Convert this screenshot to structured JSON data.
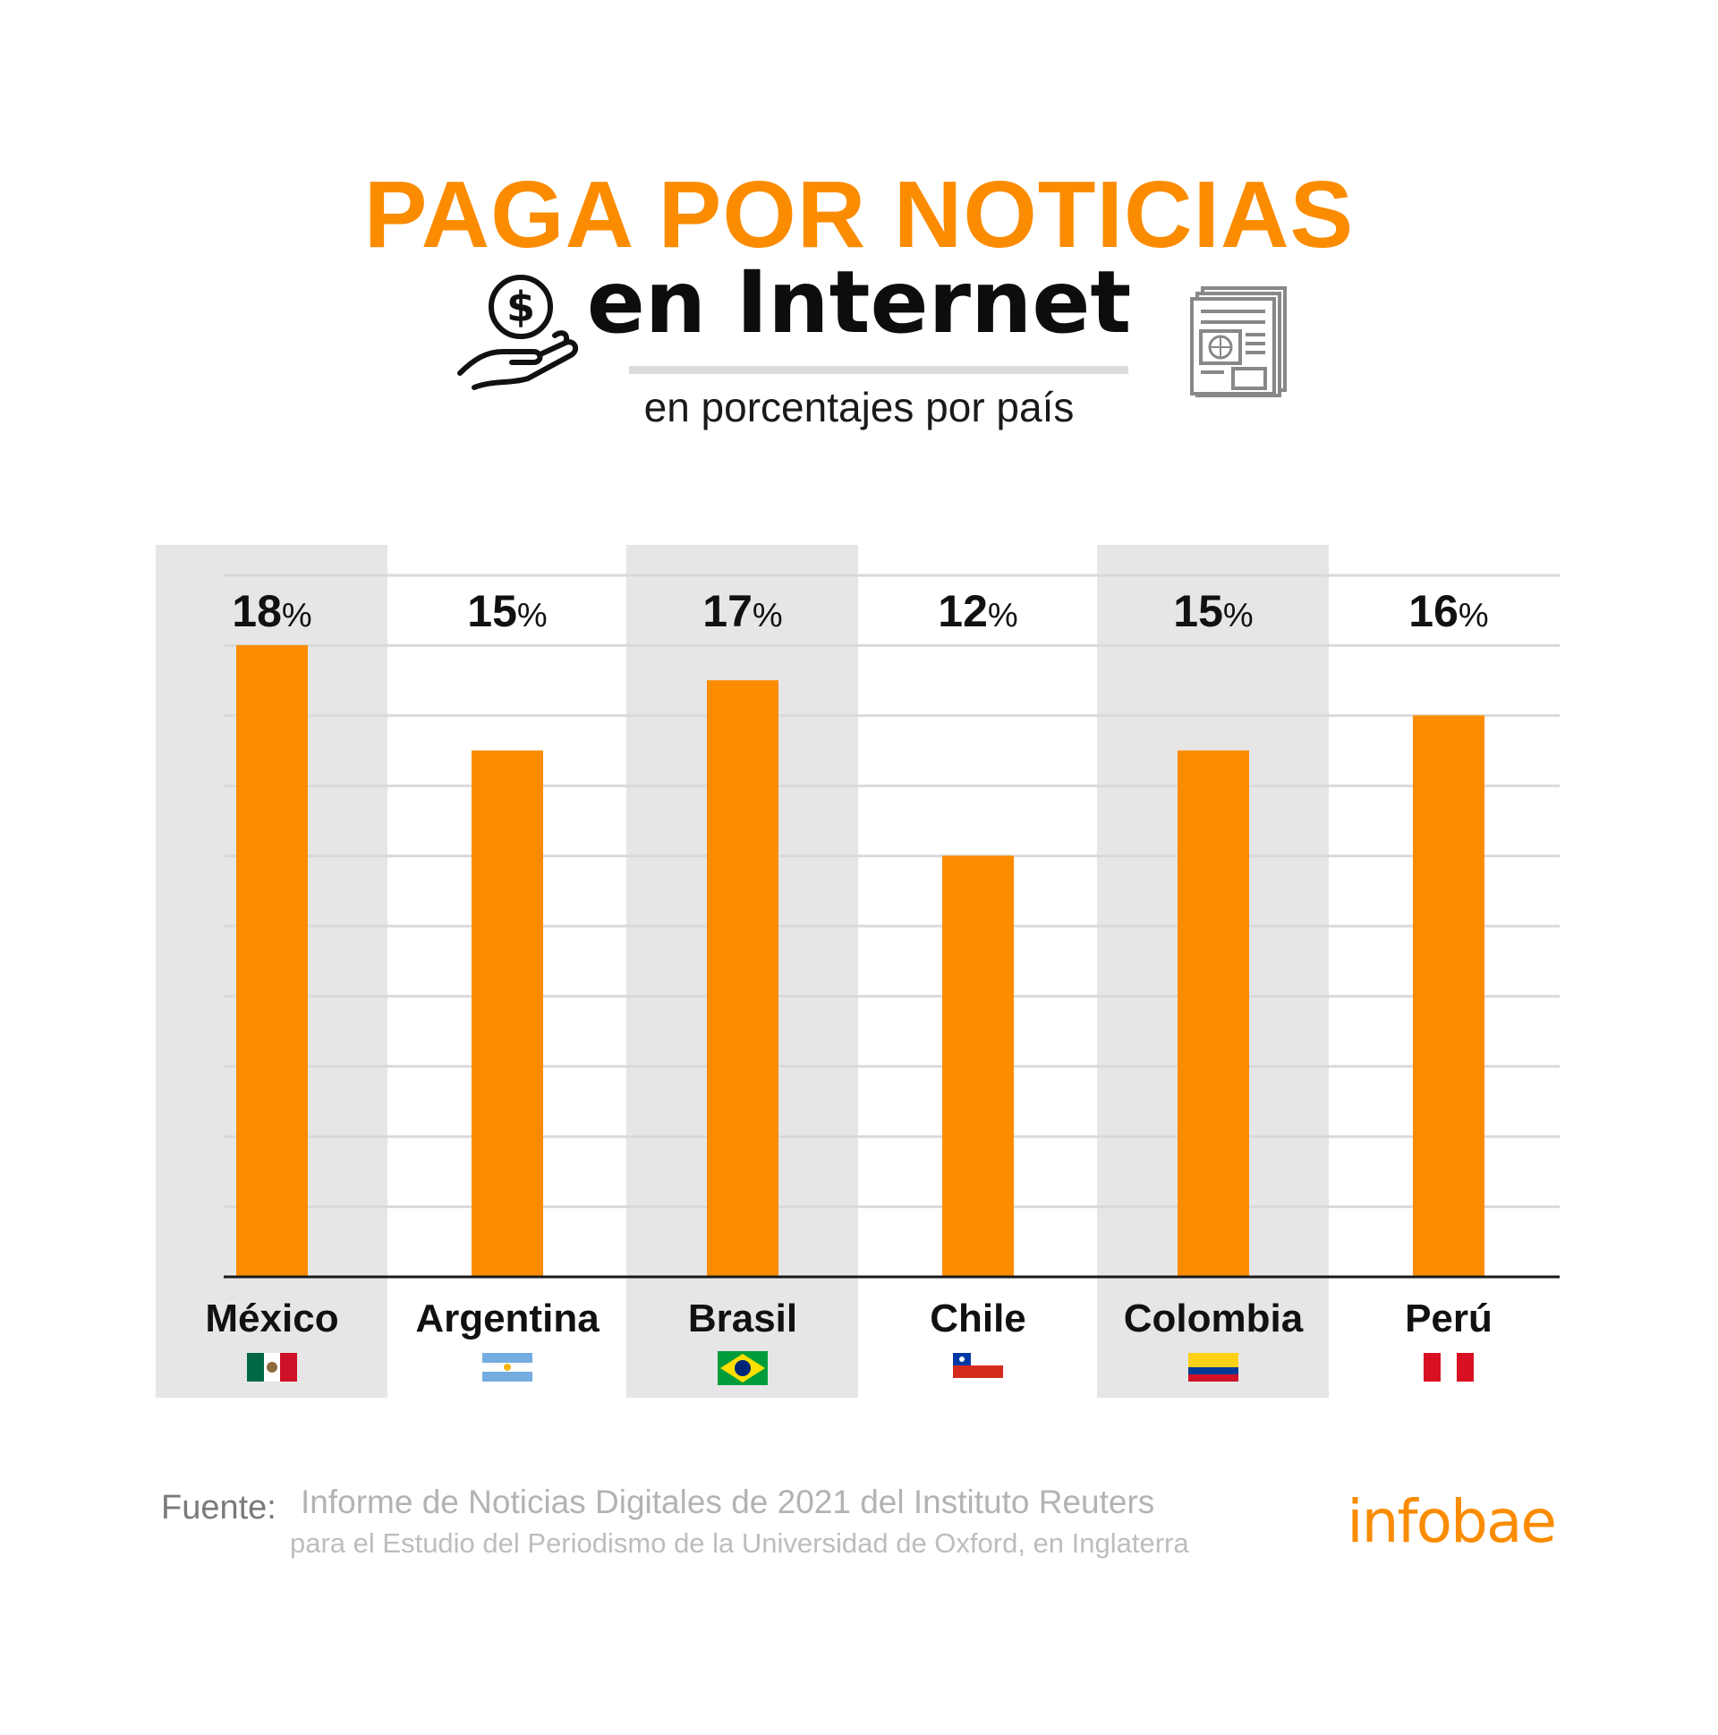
{
  "header": {
    "title": "PAGA POR NOTICIAS",
    "title2": "en Internet",
    "subtitle": "en porcentajes por país",
    "icon_left": "hand-coin-icon",
    "icon_right": "newspaper-icon"
  },
  "colors": {
    "accent": "#FB8C00",
    "band": "#E6E6E6",
    "grid": "#D9D9D9",
    "axis": "#1A1A1A"
  },
  "chart_data": {
    "type": "bar",
    "title": "PAGA POR NOTICIAS en Internet",
    "subtitle": "en porcentajes por país",
    "categories": [
      "México",
      "Argentina",
      "Brasil",
      "Chile",
      "Colombia",
      "Perú"
    ],
    "values": [
      18,
      15,
      17,
      12,
      15,
      16
    ],
    "value_unit": "%",
    "flags": [
      "mexico-flag-icon",
      "argentina-flag-icon",
      "brazil-flag-icon",
      "chile-flag-icon",
      "colombia-flag-icon",
      "peru-flag-icon"
    ],
    "ylim": [
      0,
      18
    ],
    "grid": true,
    "legend": "none"
  },
  "footer": {
    "source_label": "Fuente:",
    "source_line1": "Informe de Noticias Digitales de 2021 del Instituto Reuters",
    "source_line2": "para el Estudio del Periodismo de la Universidad de Oxford, en Inglaterra",
    "brand": "infobae"
  }
}
